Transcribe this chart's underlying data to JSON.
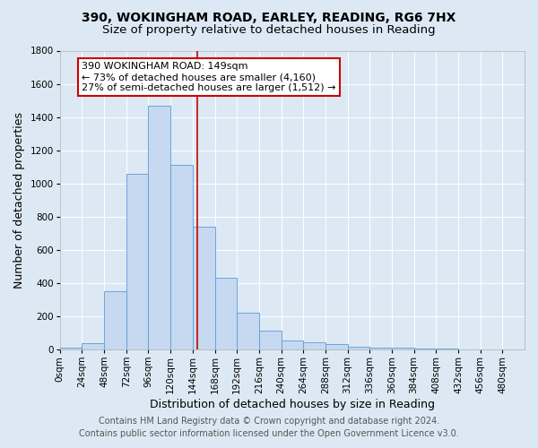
{
  "title1": "390, WOKINGHAM ROAD, EARLEY, READING, RG6 7HX",
  "title2": "Size of property relative to detached houses in Reading",
  "xlabel": "Distribution of detached houses by size in Reading",
  "ylabel": "Number of detached properties",
  "bin_labels": [
    "0sqm",
    "24sqm",
    "48sqm",
    "72sqm",
    "96sqm",
    "120sqm",
    "144sqm",
    "168sqm",
    "192sqm",
    "216sqm",
    "240sqm",
    "264sqm",
    "288sqm",
    "312sqm",
    "336sqm",
    "360sqm",
    "384sqm",
    "408sqm",
    "432sqm",
    "456sqm",
    "480sqm"
  ],
  "bar_heights": [
    10,
    35,
    350,
    1060,
    1470,
    1110,
    740,
    430,
    220,
    115,
    55,
    45,
    30,
    18,
    12,
    8,
    5,
    3,
    2,
    1,
    0
  ],
  "bar_color": "#c6d9f0",
  "bar_edge_color": "#5b9bd5",
  "bin_width": 24,
  "property_sqm": 149,
  "vline_color": "#cc0000",
  "annotation_line1": "390 WOKINGHAM ROAD: 149sqm",
  "annotation_line2": "← 73% of detached houses are smaller (4,160)",
  "annotation_line3": "27% of semi-detached houses are larger (1,512) →",
  "annotation_box_color": "#ffffff",
  "annotation_box_edge_color": "#cc0000",
  "ylim": [
    0,
    1800
  ],
  "yticks": [
    0,
    200,
    400,
    600,
    800,
    1000,
    1200,
    1400,
    1600,
    1800
  ],
  "footer1": "Contains HM Land Registry data © Crown copyright and database right 2024.",
  "footer2": "Contains public sector information licensed under the Open Government Licence v3.0.",
  "background_color": "#dce9f5",
  "plot_bg_color": "#dce9f5",
  "grid_color": "#ffffff",
  "title1_fontsize": 10,
  "title2_fontsize": 9.5,
  "axis_label_fontsize": 9,
  "tick_fontsize": 7.5,
  "annotation_fontsize": 8,
  "footer_fontsize": 7
}
